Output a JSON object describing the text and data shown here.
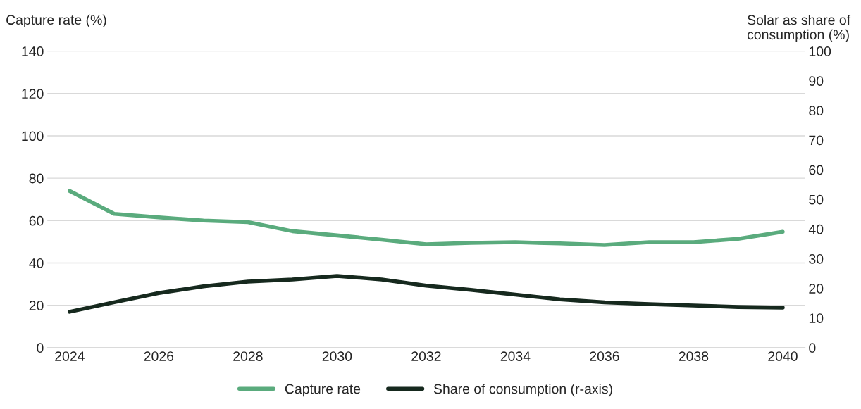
{
  "chart_data": {
    "type": "line",
    "ylabel": "Capture rate (%)",
    "y2label": "Solar as share of\nconsumption (%)",
    "x": [
      2024,
      2025,
      2026,
      2027,
      2028,
      2029,
      2030,
      2031,
      2032,
      2033,
      2034,
      2035,
      2036,
      2037,
      2038,
      2039,
      2040
    ],
    "series": [
      {
        "name": "Capture rate",
        "color": "#5aab7d",
        "values": [
          74,
          63.2,
          61.5,
          60,
          59.3,
          55,
          53,
          51,
          48.8,
          49.5,
          49.8,
          49.2,
          48.5,
          49.8,
          49.8,
          51.4,
          54.7
        ]
      },
      {
        "name": "Share of consumption (r-axis)",
        "color": "#16291e",
        "axis": "y2",
        "values": [
          12.1,
          15.3,
          18.4,
          20.7,
          22.3,
          23,
          24.2,
          23,
          20.9,
          19.5,
          17.9,
          16.3,
          15.3,
          14.7,
          14.2,
          13.7,
          13.5
        ]
      }
    ],
    "xlim": [
      2023.5,
      2040.5
    ],
    "xticks": [
      2024,
      2026,
      2028,
      2030,
      2032,
      2034,
      2036,
      2038,
      2040
    ],
    "ylim": [
      0,
      140
    ],
    "yticks": [
      0,
      20,
      40,
      60,
      80,
      100,
      120,
      140
    ],
    "y2lim": [
      0,
      100
    ],
    "y2ticks": [
      0,
      10,
      20,
      30,
      40,
      50,
      60,
      70,
      80,
      90,
      100
    ],
    "grid": "y",
    "legend": "bottom",
    "marker": "none",
    "line_style": "solid"
  }
}
